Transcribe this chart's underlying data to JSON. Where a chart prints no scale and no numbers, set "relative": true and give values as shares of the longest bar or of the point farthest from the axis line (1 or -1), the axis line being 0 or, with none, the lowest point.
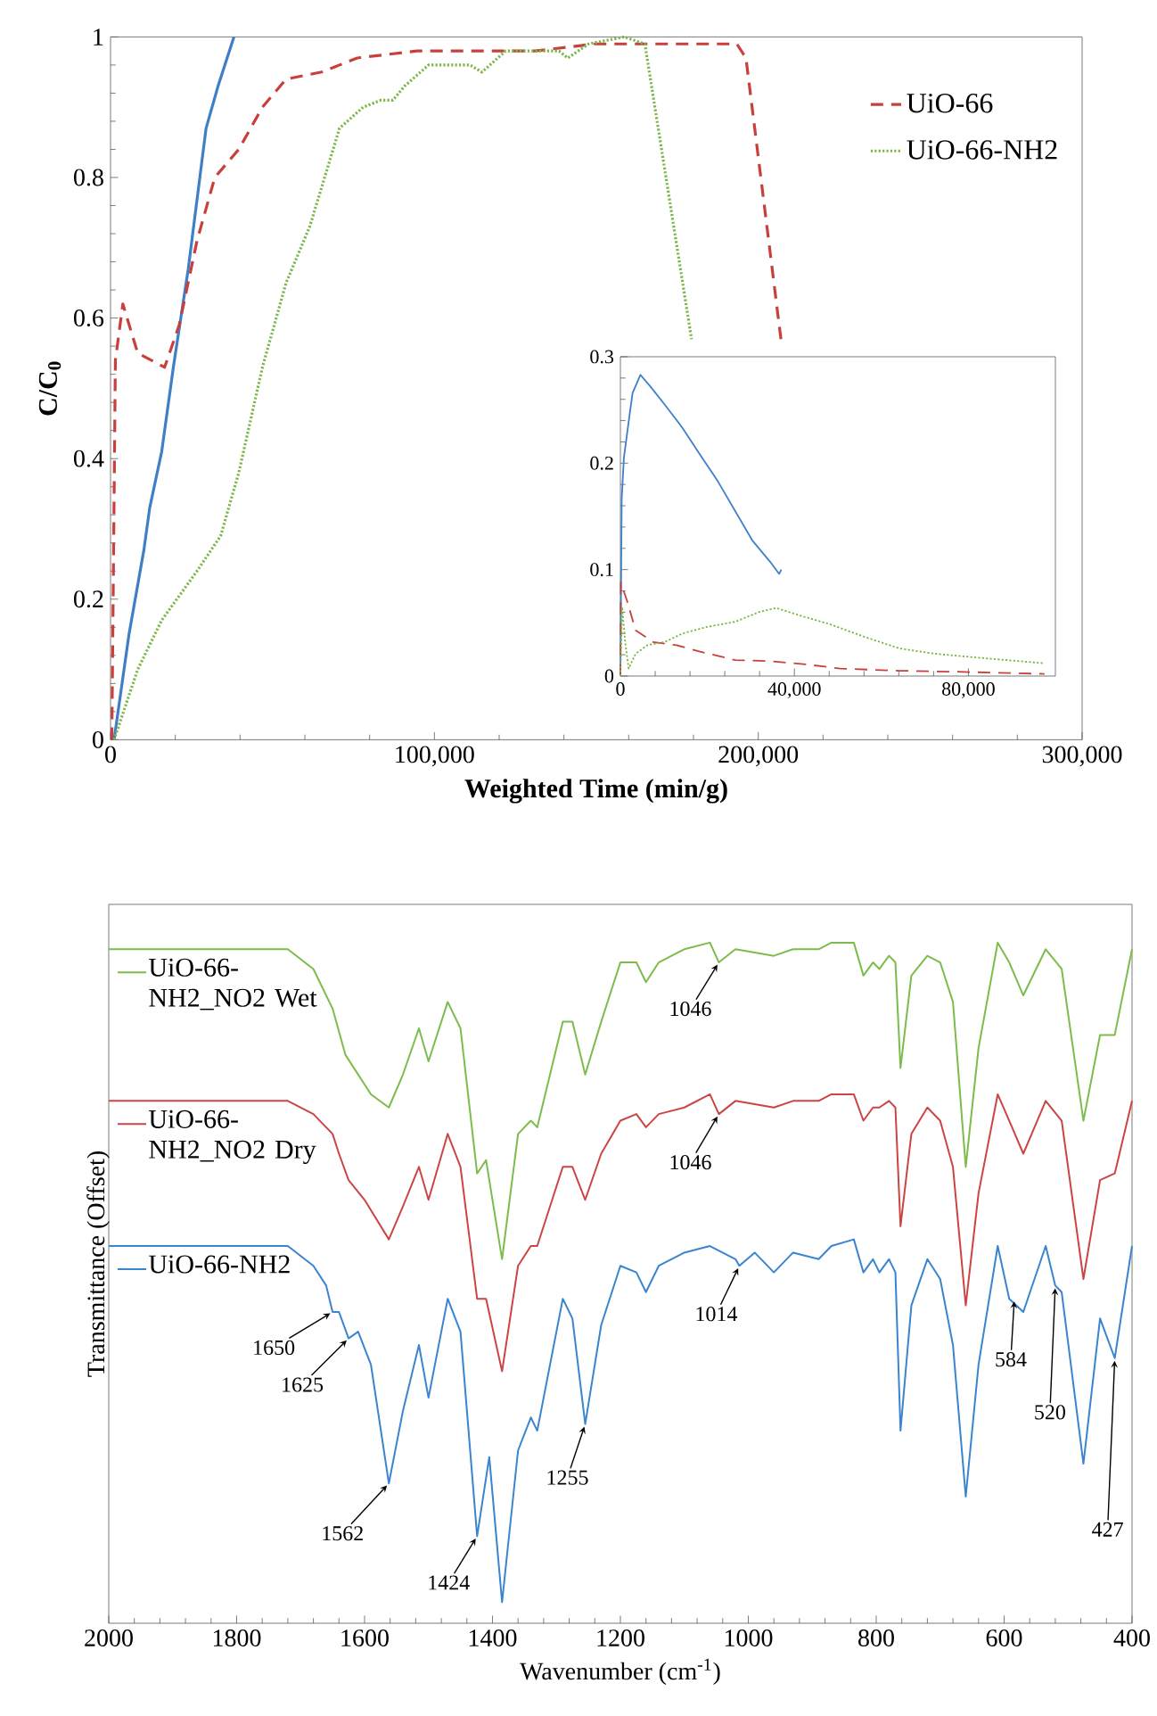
{
  "chart_data": [
    {
      "type": "line",
      "xlabel": "Weighted Time (min/g)",
      "ylabel": "C/C$_{0}$",
      "xlim": [
        0,
        300000
      ],
      "ylim": [
        0,
        1
      ],
      "xticks": [
        0,
        {
          "value": 100000,
          "label": "100,000"
        },
        {
          "value": 200000,
          "label": "200,000"
        },
        {
          "value": 300000,
          "label": "300,000"
        }
      ],
      "yticks": [
        0,
        0.2,
        0.4,
        0.6,
        0.8,
        1
      ],
      "legend": "top right",
      "series": [
        {
          "color": "#3f7fc8",
          "line_style": "solid",
          "x": [
            1100,
            5700,
            10300,
            12100,
            15800,
            19400,
            24000,
            29500,
            33200,
            38100
          ],
          "values": [
            0,
            0.15,
            0.27,
            0.33,
            0.41,
            0.53,
            0.67,
            0.87,
            0.93,
            1
          ]
        },
        {
          "name": "UiO-66",
          "color": "#c8403c",
          "line_style": "dashed",
          "x": [
            400,
            1500,
            3800,
            8400,
            16700,
            21200,
            26700,
            32200,
            39600,
            46900,
            54200,
            65200,
            76200,
            94500,
            131000,
            149500,
            193400,
            196200,
            207000
          ],
          "values": [
            0,
            0.54,
            0.62,
            0.55,
            0.53,
            0.59,
            0.71,
            0.8,
            0.84,
            0.9,
            0.94,
            0.95,
            0.97,
            0.98,
            0.98,
            0.99,
            0.99,
            0.97,
            0.57
          ]
        },
        {
          "name": "UiO-66-NH2",
          "color": "#7ab648",
          "line_style": "dotted",
          "x": [
            1100,
            8400,
            15800,
            26700,
            34000,
            39600,
            46900,
            54200,
            61500,
            70700,
            78000,
            83500,
            87200,
            90800,
            98200,
            111000,
            114700,
            122000,
            138500,
            141200,
            147600,
            158600,
            165000,
            179400
          ],
          "values": [
            0,
            0.1,
            0.17,
            0.24,
            0.29,
            0.38,
            0.53,
            0.65,
            0.73,
            0.87,
            0.9,
            0.91,
            0.91,
            0.93,
            0.96,
            0.96,
            0.95,
            0.98,
            0.98,
            0.97,
            0.99,
            1,
            0.99,
            0.57
          ]
        }
      ]
    },
    {
      "type": "line",
      "xlim": [
        0,
        100000
      ],
      "ylim": [
        0,
        0.3
      ],
      "xticks": [
        0,
        {
          "value": 40000,
          "label": "40,000"
        },
        {
          "value": 80000,
          "label": "80,000"
        }
      ],
      "yticks": [
        0,
        0.1,
        0.2,
        0.3
      ],
      "series": [
        {
          "color": "#3f7fc8",
          "line_style": "solid",
          "x": [
            0,
            300,
            800,
            1900,
            2800,
            4600,
            6900,
            10200,
            14300,
            18300,
            22400,
            26400,
            30400,
            34500,
            36500,
            37000
          ],
          "values": [
            0,
            0.166,
            0.205,
            0.239,
            0.266,
            0.283,
            0.272,
            0.255,
            0.233,
            0.208,
            0.183,
            0.155,
            0.127,
            0.107,
            0.096,
            0.1
          ]
        },
        {
          "color": "#c8403c",
          "line_style": "dashed",
          "x": [
            0,
            100,
            1500,
            3500,
            7500,
            12900,
            18300,
            26400,
            34500,
            42600,
            50600,
            64100,
            77600,
            97500
          ],
          "values": [
            0,
            0.088,
            0.071,
            0.043,
            0.032,
            0.029,
            0.023,
            0.015,
            0.014,
            0.011,
            0.007,
            0.005,
            0.004,
            0.002
          ]
        },
        {
          "color": "#7ab648",
          "line_style": "dotted",
          "x": [
            0,
            400,
            1100,
            1900,
            3500,
            6200,
            10200,
            14300,
            19700,
            26400,
            31800,
            35800,
            41200,
            47900,
            56000,
            64100,
            72200,
            83000,
            97500
          ],
          "values": [
            0,
            0.065,
            0.032,
            0.007,
            0.021,
            0.029,
            0.032,
            0.04,
            0.046,
            0.051,
            0.06,
            0.064,
            0.057,
            0.049,
            0.037,
            0.026,
            0.021,
            0.017,
            0.012
          ]
        }
      ]
    },
    {
      "type": "line",
      "relative": true,
      "xlabel": "Wavenumber (cm$^{-1}$)",
      "ylabel": "Transmittance (Offset)",
      "xlim": [
        2000,
        400
      ],
      "xticks": [
        2000,
        1800,
        1600,
        1400,
        1200,
        1000,
        800,
        600,
        400
      ],
      "tick_labels": "x",
      "legend": "top left",
      "series": [
        {
          "name": "UiO-66-NH2_NO2 Wet",
          "color": "#7cbc4c",
          "line_style": "solid",
          "x": [
            2000,
            1720,
            1680,
            1650,
            1630,
            1610,
            1590,
            1562,
            1540,
            1515,
            1500,
            1470,
            1450,
            1424,
            1410,
            1385,
            1360,
            1340,
            1330,
            1290,
            1275,
            1255,
            1230,
            1200,
            1175,
            1160,
            1140,
            1100,
            1060,
            1046,
            1020,
            960,
            930,
            890,
            870,
            835,
            820,
            805,
            795,
            780,
            770,
            762,
            745,
            720,
            700,
            680,
            660,
            640,
            610,
            592,
            570,
            535,
            510,
            476,
            450,
            427,
            400
          ],
          "values": [
            0.99,
            0.99,
            0.96,
            0.9,
            0.83,
            0.8,
            0.77,
            0.75,
            0.8,
            0.87,
            0.82,
            0.91,
            0.87,
            0.65,
            0.67,
            0.52,
            0.71,
            0.73,
            0.72,
            0.88,
            0.88,
            0.8,
            0.88,
            0.97,
            0.97,
            0.94,
            0.97,
            0.99,
            1,
            0.97,
            0.99,
            0.98,
            0.99,
            0.99,
            1,
            1,
            0.95,
            0.97,
            0.96,
            0.98,
            0.97,
            0.81,
            0.95,
            0.98,
            0.97,
            0.91,
            0.66,
            0.84,
            1,
            0.97,
            0.92,
            0.99,
            0.96,
            0.73,
            0.86,
            0.86,
            0.99
          ]
        },
        {
          "name": "UiO-66-NH2_NO2 Dry",
          "color": "#cc4444",
          "line_style": "solid",
          "x": [
            2000,
            1720,
            1680,
            1650,
            1640,
            1625,
            1600,
            1562,
            1540,
            1515,
            1500,
            1470,
            1450,
            1424,
            1410,
            1385,
            1360,
            1340,
            1330,
            1290,
            1275,
            1255,
            1230,
            1200,
            1175,
            1160,
            1140,
            1100,
            1060,
            1046,
            1020,
            960,
            930,
            890,
            870,
            835,
            820,
            805,
            795,
            780,
            770,
            762,
            745,
            720,
            700,
            680,
            660,
            640,
            610,
            592,
            570,
            535,
            510,
            476,
            450,
            427,
            400
          ],
          "values": [
            0.76,
            0.76,
            0.74,
            0.71,
            0.68,
            0.64,
            0.61,
            0.55,
            0.6,
            0.66,
            0.61,
            0.71,
            0.66,
            0.46,
            0.46,
            0.35,
            0.51,
            0.54,
            0.54,
            0.66,
            0.66,
            0.61,
            0.68,
            0.73,
            0.74,
            0.72,
            0.74,
            0.75,
            0.77,
            0.74,
            0.76,
            0.75,
            0.76,
            0.76,
            0.77,
            0.77,
            0.73,
            0.75,
            0.75,
            0.76,
            0.75,
            0.57,
            0.71,
            0.75,
            0.73,
            0.66,
            0.45,
            0.62,
            0.77,
            0.73,
            0.68,
            0.76,
            0.73,
            0.49,
            0.64,
            0.65,
            0.76
          ]
        },
        {
          "name": "UiO-66-NH2",
          "color": "#3a84d0",
          "line_style": "solid",
          "x": [
            2000,
            1720,
            1680,
            1660,
            1650,
            1640,
            1625,
            1610,
            1590,
            1562,
            1540,
            1515,
            1500,
            1470,
            1450,
            1424,
            1405,
            1385,
            1360,
            1340,
            1330,
            1290,
            1275,
            1255,
            1230,
            1200,
            1175,
            1160,
            1140,
            1100,
            1060,
            1020,
            1014,
            990,
            960,
            930,
            890,
            870,
            835,
            820,
            805,
            795,
            780,
            770,
            762,
            745,
            720,
            700,
            680,
            660,
            640,
            610,
            592,
            570,
            535,
            520,
            510,
            476,
            450,
            427,
            400
          ],
          "values": [
            0.54,
            0.54,
            0.51,
            0.48,
            0.44,
            0.44,
            0.4,
            0.41,
            0.36,
            0.18,
            0.29,
            0.39,
            0.31,
            0.46,
            0.41,
            0.1,
            0.22,
            0,
            0.23,
            0.28,
            0.26,
            0.46,
            0.43,
            0.27,
            0.42,
            0.51,
            0.5,
            0.47,
            0.51,
            0.53,
            0.54,
            0.52,
            0.51,
            0.53,
            0.5,
            0.53,
            0.52,
            0.54,
            0.55,
            0.5,
            0.52,
            0.5,
            0.52,
            0.5,
            0.26,
            0.45,
            0.52,
            0.49,
            0.39,
            0.16,
            0.36,
            0.54,
            0.46,
            0.44,
            0.54,
            0.48,
            0.47,
            0.21,
            0.43,
            0.37,
            0.54
          ]
        }
      ],
      "annotations": [
        {
          "text": "1650",
          "x": 1650,
          "y": 0.44
        },
        {
          "text": "1625",
          "x": 1625,
          "y": 0.4
        },
        {
          "text": "1562",
          "x": 1562,
          "y": 0.18
        },
        {
          "text": "1424",
          "x": 1424,
          "y": 0.1
        },
        {
          "text": "1255",
          "x": 1255,
          "y": 0.27
        },
        {
          "text": "1014",
          "x": 1014,
          "y": 0.51
        },
        {
          "text": "1046",
          "x": 1046,
          "y": 0.74
        },
        {
          "text": "1046",
          "x": 1046,
          "y": 0.97
        },
        {
          "text": "584",
          "x": 584,
          "y": 0.46
        },
        {
          "text": "520",
          "x": 520,
          "y": 0.48
        },
        {
          "text": "427",
          "x": 427,
          "y": 0.37
        }
      ]
    }
  ]
}
